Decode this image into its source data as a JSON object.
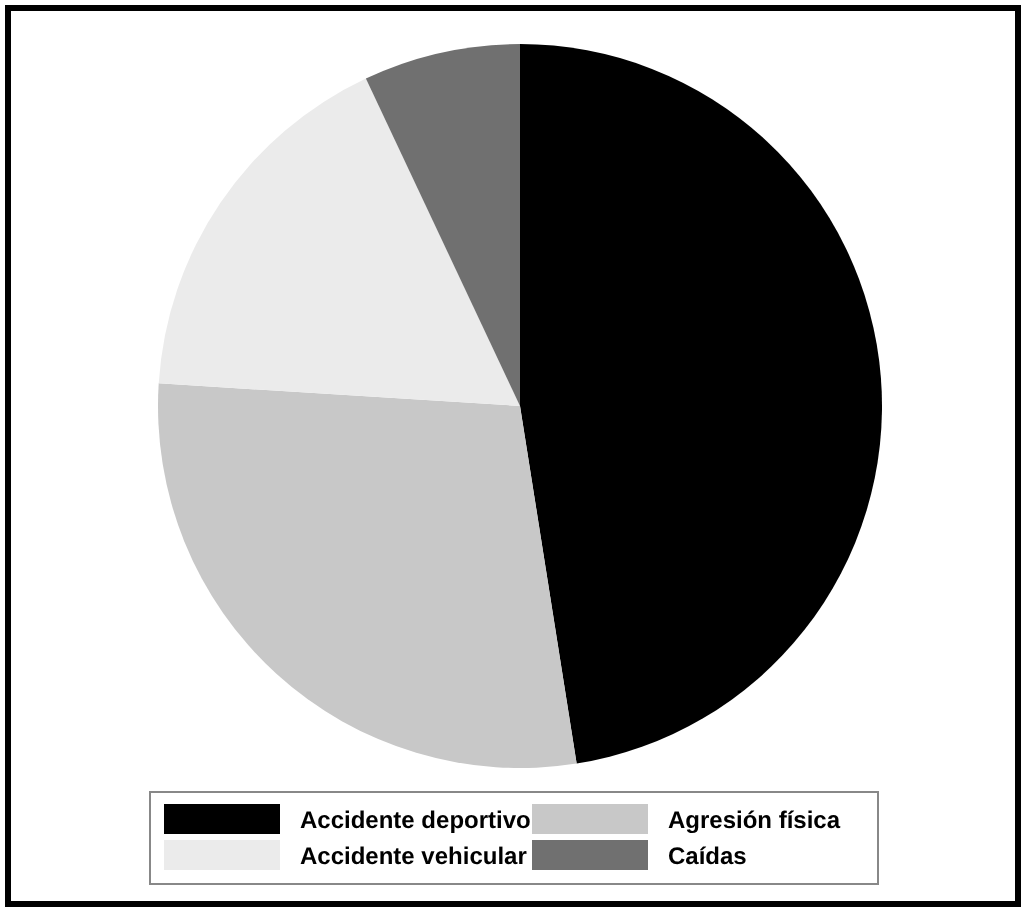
{
  "chart_data": {
    "type": "pie",
    "categories": [
      "Accidente deportivo",
      "Agresión física",
      "Accidente vehicular",
      "Caídas"
    ],
    "values": [
      47.5,
      28.5,
      17,
      7
    ],
    "colors": [
      "#000000",
      "#c8c8c8",
      "#ebebeb",
      "#707070"
    ],
    "legend": "bottom"
  }
}
